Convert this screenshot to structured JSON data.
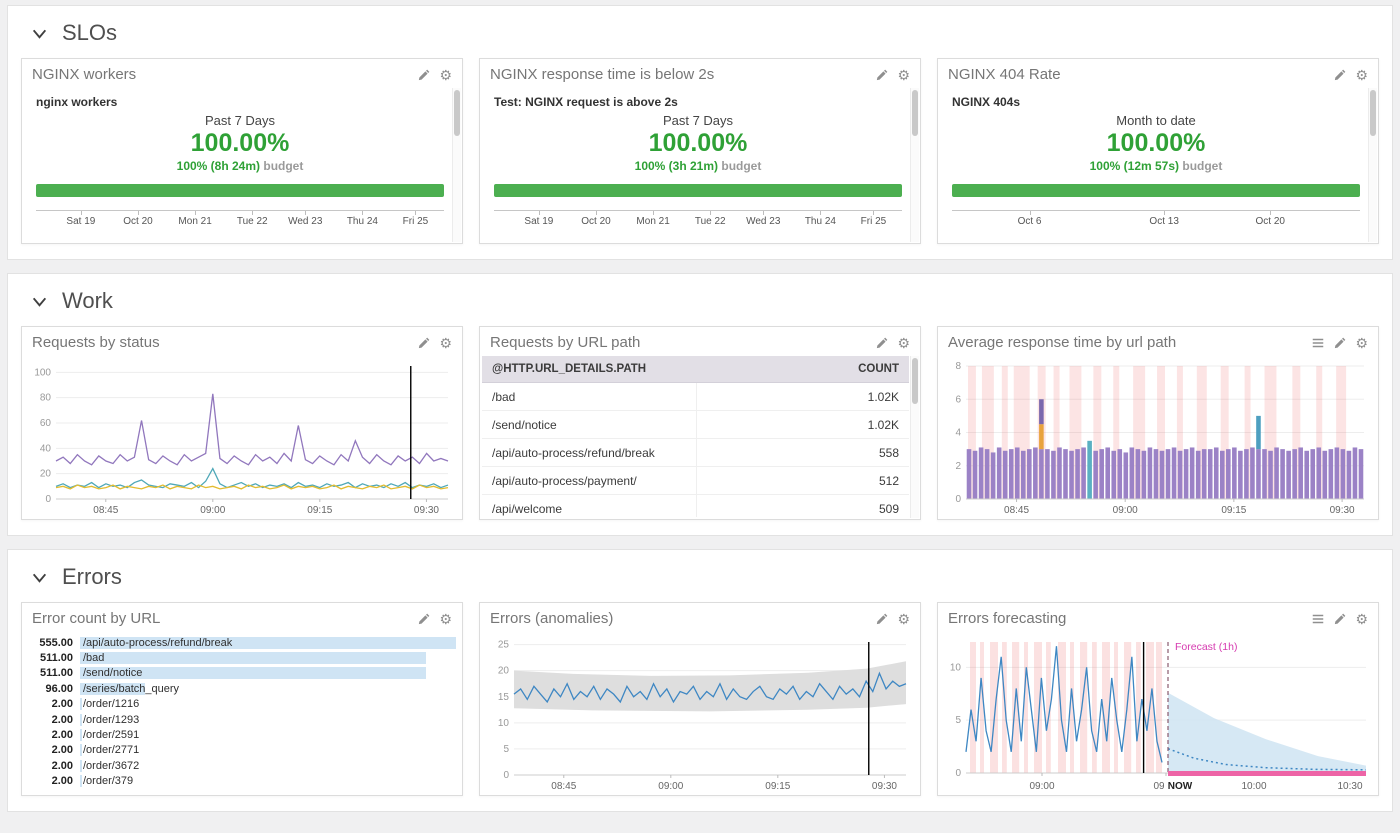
{
  "sections": [
    {
      "title": "SLOs"
    },
    {
      "title": "Work"
    },
    {
      "title": "Errors"
    }
  ],
  "icons": {
    "gear": "⚙"
  },
  "slos": [
    {
      "title": "NGINX workers",
      "metric": "nginx workers",
      "period": "Past 7 Days",
      "value": "100.00%",
      "budget": "100% (8h 24m)",
      "budget_word": "budget",
      "axis": [
        {
          "pos": 0.11,
          "label": "Sat 19"
        },
        {
          "pos": 0.25,
          "label": "Oct 20"
        },
        {
          "pos": 0.39,
          "label": "Mon 21"
        },
        {
          "pos": 0.53,
          "label": "Tue 22"
        },
        {
          "pos": 0.66,
          "label": "Wed 23"
        },
        {
          "pos": 0.8,
          "label": "Thu 24"
        },
        {
          "pos": 0.93,
          "label": "Fri 25"
        }
      ]
    },
    {
      "title": "NGINX response time is below 2s",
      "metric": "Test: NGINX request is above 2s",
      "period": "Past 7 Days",
      "value": "100.00%",
      "budget": "100% (3h 21m)",
      "budget_word": "budget",
      "axis": [
        {
          "pos": 0.11,
          "label": "Sat 19"
        },
        {
          "pos": 0.25,
          "label": "Oct 20"
        },
        {
          "pos": 0.39,
          "label": "Mon 21"
        },
        {
          "pos": 0.53,
          "label": "Tue 22"
        },
        {
          "pos": 0.66,
          "label": "Wed 23"
        },
        {
          "pos": 0.8,
          "label": "Thu 24"
        },
        {
          "pos": 0.93,
          "label": "Fri 25"
        }
      ]
    },
    {
      "title": "NGINX 404 Rate",
      "metric": "NGINX 404s",
      "period": "Month to date",
      "value": "100.00%",
      "budget": "100% (12m 57s)",
      "budget_word": "budget",
      "axis": [
        {
          "pos": 0.19,
          "label": "Oct 6"
        },
        {
          "pos": 0.52,
          "label": "Oct 13"
        },
        {
          "pos": 0.78,
          "label": "Oct 20"
        }
      ]
    }
  ],
  "work": {
    "cards": [
      {
        "title": "Requests by status"
      },
      {
        "title": "Requests by URL path"
      },
      {
        "title": "Average response time by url path"
      }
    ]
  },
  "errors_section": {
    "cards": [
      {
        "title": "Error count by URL"
      },
      {
        "title": "Errors (anomalies)"
      },
      {
        "title": "Errors forecasting"
      }
    ]
  },
  "colors": {
    "slo_green_text": "#2fa136",
    "slo_green_bar": "#4caf50",
    "status_purple": "#9177bd",
    "status_teal": "#4fa8b8",
    "status_yellow": "#e3bc2e",
    "anomaly_blue": "#3e87c3",
    "anomaly_band": "#dedede",
    "toplist_bar": "#cfe4f4",
    "forecast_magenta": "#d63bb0",
    "forecast_cone": "#cfe4f2",
    "forecast_bottom_bar": "#ed64a6"
  },
  "chart_data": [
    {
      "id": "requests_by_status",
      "type": "line",
      "title": "Requests by status",
      "ylim": [
        0,
        105
      ],
      "y_ticks": [
        0,
        20,
        40,
        60,
        80,
        100
      ],
      "x_ticks": [
        [
          0.127,
          "08:45"
        ],
        [
          0.4,
          "09:00"
        ],
        [
          0.673,
          "09:15"
        ],
        [
          0.945,
          "09:30"
        ]
      ],
      "marker": 0.905,
      "series": [
        {
          "color": "#9177bd",
          "values": [
            30,
            33,
            28,
            35,
            30,
            27,
            34,
            30,
            28,
            35,
            30,
            33,
            62,
            31,
            28,
            34,
            30,
            27,
            35,
            30,
            33,
            36,
            83,
            32,
            28,
            34,
            30,
            27,
            35,
            30,
            33,
            28,
            36,
            30,
            58,
            31,
            28,
            34,
            30,
            27,
            35,
            30,
            46,
            33,
            28,
            35,
            30,
            27,
            34,
            30,
            33,
            28,
            36,
            30,
            32,
            30
          ]
        },
        {
          "color": "#4fa8b8",
          "values": [
            10,
            12,
            9,
            11,
            10,
            13,
            9,
            12,
            10,
            11,
            9,
            13,
            15,
            11,
            10,
            9,
            12,
            11,
            10,
            13,
            9,
            14,
            24,
            12,
            9,
            11,
            13,
            10,
            12,
            9,
            11,
            10,
            12,
            9,
            13,
            10,
            11,
            9,
            12,
            10,
            11,
            13,
            9,
            12,
            10,
            11,
            9,
            12,
            10,
            13,
            9,
            11,
            10,
            12,
            9,
            11
          ]
        },
        {
          "color": "#e3bc2e",
          "values": [
            9,
            10,
            8,
            11,
            9,
            10,
            8,
            9,
            11,
            8,
            10,
            9,
            8,
            10,
            9,
            11,
            8,
            10,
            9,
            8,
            11,
            9,
            10,
            8,
            9,
            10,
            8,
            11,
            9,
            10,
            8,
            9,
            11,
            8,
            10,
            9,
            10,
            8,
            9,
            11,
            8,
            10,
            9,
            8,
            10,
            9,
            11,
            8,
            9,
            10,
            8,
            11,
            9,
            10,
            8,
            9
          ]
        }
      ]
    },
    {
      "id": "requests_by_url",
      "type": "table",
      "title": "Requests by URL path",
      "columns": [
        "@HTTP.URL_DETAILS.PATH",
        "COUNT"
      ],
      "rows": [
        [
          "/bad",
          "1.02K"
        ],
        [
          "/send/notice",
          "1.02K"
        ],
        [
          "/api/auto-process/refund/break",
          "558"
        ],
        [
          "/api/auto-process/payment/",
          "512"
        ],
        [
          "/api/welcome",
          "509"
        ]
      ]
    },
    {
      "id": "avg_response_time",
      "type": "bar",
      "title": "Average response time by url path",
      "ylim": [
        0,
        8
      ],
      "y_ticks": [
        0,
        2,
        4,
        6,
        8
      ],
      "x_ticks": [
        [
          0.127,
          "08:45"
        ],
        [
          0.4,
          "09:00"
        ],
        [
          0.673,
          "09:15"
        ],
        [
          0.945,
          "09:30"
        ]
      ],
      "bar_color": "#9b82c6",
      "band_color": "rgba(235,87,87,0.16)",
      "bands": [
        [
          0.005,
          0.02
        ],
        [
          0.04,
          0.03
        ],
        [
          0.09,
          0.015
        ],
        [
          0.12,
          0.04
        ],
        [
          0.18,
          0.02
        ],
        [
          0.22,
          0.015
        ],
        [
          0.26,
          0.03
        ],
        [
          0.32,
          0.02
        ],
        [
          0.37,
          0.015
        ],
        [
          0.42,
          0.03
        ],
        [
          0.48,
          0.02
        ],
        [
          0.53,
          0.015
        ],
        [
          0.58,
          0.025
        ],
        [
          0.64,
          0.02
        ],
        [
          0.7,
          0.015
        ],
        [
          0.75,
          0.03
        ],
        [
          0.82,
          0.02
        ],
        [
          0.88,
          0.015
        ],
        [
          0.93,
          0.025
        ]
      ],
      "values": [
        3,
        2.9,
        3.1,
        3,
        2.8,
        3.1,
        2.9,
        3,
        3.1,
        2.9,
        3,
        3.1,
        6,
        3,
        2.9,
        3.1,
        3,
        2.9,
        3,
        3.1,
        3.5,
        2.9,
        3,
        3.1,
        2.9,
        3,
        2.8,
        3.1,
        3,
        2.9,
        3.1,
        3,
        2.9,
        3,
        3.1,
        2.9,
        3,
        3.1,
        2.9,
        3,
        3,
        3.1,
        2.9,
        3,
        3.1,
        2.9,
        3,
        3.1,
        5,
        3,
        2.9,
        3.1,
        3,
        2.9,
        3,
        3.1,
        2.9,
        3,
        3.1,
        2.9,
        3,
        3.1,
        3,
        2.9,
        3.1,
        3
      ],
      "specials": {
        "12": {
          "segments": [
            [
              3,
              "#9b82c6"
            ],
            [
              1.5,
              "#e8a33d"
            ],
            [
              1.5,
              "#7a68ad"
            ]
          ]
        },
        "20": {
          "color": "#5ab0c2"
        },
        "48": {
          "segments": [
            [
              3,
              "#9b82c6"
            ],
            [
              2,
              "#4e9fc0"
            ]
          ]
        }
      }
    },
    {
      "id": "error_count_by_url",
      "type": "toplist",
      "title": "Error count by URL",
      "bar_color": "#cfe4f4",
      "rows": [
        [
          "555.00",
          "/api/auto-process/refund/break",
          1.0
        ],
        [
          "511.00",
          "/bad",
          0.921
        ],
        [
          "511.00",
          "/send/notice",
          0.921
        ],
        [
          "96.00",
          "/series/batch_query",
          0.173
        ],
        [
          "2.00",
          "/order/1216",
          0.006
        ],
        [
          "2.00",
          "/order/1293",
          0.006
        ],
        [
          "2.00",
          "/order/2591",
          0.006
        ],
        [
          "2.00",
          "/order/2771",
          0.006
        ],
        [
          "2.00",
          "/order/3672",
          0.006
        ],
        [
          "2.00",
          "/order/379",
          0.006
        ]
      ]
    },
    {
      "id": "errors_anomalies",
      "type": "line",
      "title": "Errors (anomalies)",
      "ylim": [
        0,
        25.5
      ],
      "y_ticks": [
        0,
        5,
        10,
        15,
        20,
        25
      ],
      "x_ticks": [
        [
          0.127,
          "08:45"
        ],
        [
          0.4,
          "09:00"
        ],
        [
          0.673,
          "09:15"
        ],
        [
          0.945,
          "09:30"
        ]
      ],
      "marker": 0.905,
      "band": {
        "color": "#dedede",
        "top": [
          [
            0,
            20
          ],
          [
            0.15,
            19.4
          ],
          [
            0.35,
            19
          ],
          [
            0.55,
            19.1
          ],
          [
            0.75,
            19.6
          ],
          [
            0.9,
            20.4
          ],
          [
            1,
            21.8
          ]
        ],
        "bottom": [
          [
            0,
            12.8
          ],
          [
            0.2,
            12.4
          ],
          [
            0.5,
            12.2
          ],
          [
            0.75,
            12.5
          ],
          [
            0.9,
            12.9
          ],
          [
            1,
            13.6
          ]
        ]
      },
      "series": [
        {
          "color": "#3e87c3",
          "values": [
            15.5,
            16.5,
            14.5,
            17,
            15.5,
            14,
            16.5,
            15,
            17.5,
            14.5,
            16,
            15,
            17,
            14.5,
            16.5,
            15.5,
            14,
            17,
            15,
            16,
            14.5,
            17.5,
            15,
            16.5,
            14,
            16,
            15.5,
            17,
            14.5,
            16,
            15,
            17.5,
            14.5,
            16.5,
            15,
            14.5,
            16,
            17,
            15,
            14.5,
            16.5,
            15.5,
            17,
            14.5,
            16,
            15,
            17.5,
            16,
            14.5,
            17,
            15.5,
            16.5,
            15,
            18,
            16,
            19.5,
            16.5,
            18,
            17,
            17.5
          ]
        }
      ]
    },
    {
      "id": "errors_forecasting",
      "type": "forecast",
      "title": "Errors forecasting",
      "ylim": [
        0,
        12.4
      ],
      "y_ticks": [
        0,
        5,
        10
      ],
      "x_ticks": [
        [
          0.19,
          "09:00"
        ],
        [
          0.5,
          "09:30"
        ],
        [
          0.72,
          "10:00"
        ],
        [
          0.96,
          "10:30"
        ]
      ],
      "marker": 0.444,
      "divider": 0.505,
      "line_end": 0.49,
      "now_pos": 0.535,
      "now_label": "NOW",
      "forecast_label": "Forecast (1h)",
      "label_color": "#d63bb0",
      "line_color": "#3e87c3",
      "band_color": "rgba(235,87,87,0.18)",
      "bands": [
        [
          0.01,
          0.015
        ],
        [
          0.035,
          0.01
        ],
        [
          0.06,
          0.02
        ],
        [
          0.09,
          0.012
        ],
        [
          0.115,
          0.018
        ],
        [
          0.145,
          0.01
        ],
        [
          0.17,
          0.02
        ],
        [
          0.2,
          0.012
        ],
        [
          0.23,
          0.02
        ],
        [
          0.26,
          0.01
        ],
        [
          0.285,
          0.018
        ],
        [
          0.315,
          0.012
        ],
        [
          0.34,
          0.02
        ],
        [
          0.37,
          0.01
        ],
        [
          0.395,
          0.018
        ],
        [
          0.425,
          0.012
        ],
        [
          0.45,
          0.02
        ],
        [
          0.475,
          0.015
        ]
      ],
      "values": [
        2,
        6,
        3,
        9,
        4,
        2,
        7,
        11,
        5,
        2,
        8,
        3,
        10,
        6,
        2,
        9,
        4,
        7,
        12,
        5,
        2,
        8,
        3,
        6,
        10,
        4,
        2,
        7,
        3,
        9,
        5,
        2,
        6,
        11,
        3,
        7,
        4,
        8,
        3,
        1
      ],
      "cone_color": "#cfe4f2",
      "cone_top": [
        [
          0.505,
          7.6
        ],
        [
          0.62,
          5.2
        ],
        [
          0.75,
          3.2
        ],
        [
          0.88,
          1.6
        ],
        [
          1,
          0.7
        ]
      ],
      "forecast_line": [
        [
          0.505,
          2.3
        ],
        [
          0.57,
          1.4
        ],
        [
          0.65,
          0.8
        ],
        [
          0.75,
          0.5
        ],
        [
          0.87,
          0.35
        ],
        [
          1,
          0.3
        ]
      ],
      "bottom_bar_color": "#ed64a6"
    }
  ]
}
